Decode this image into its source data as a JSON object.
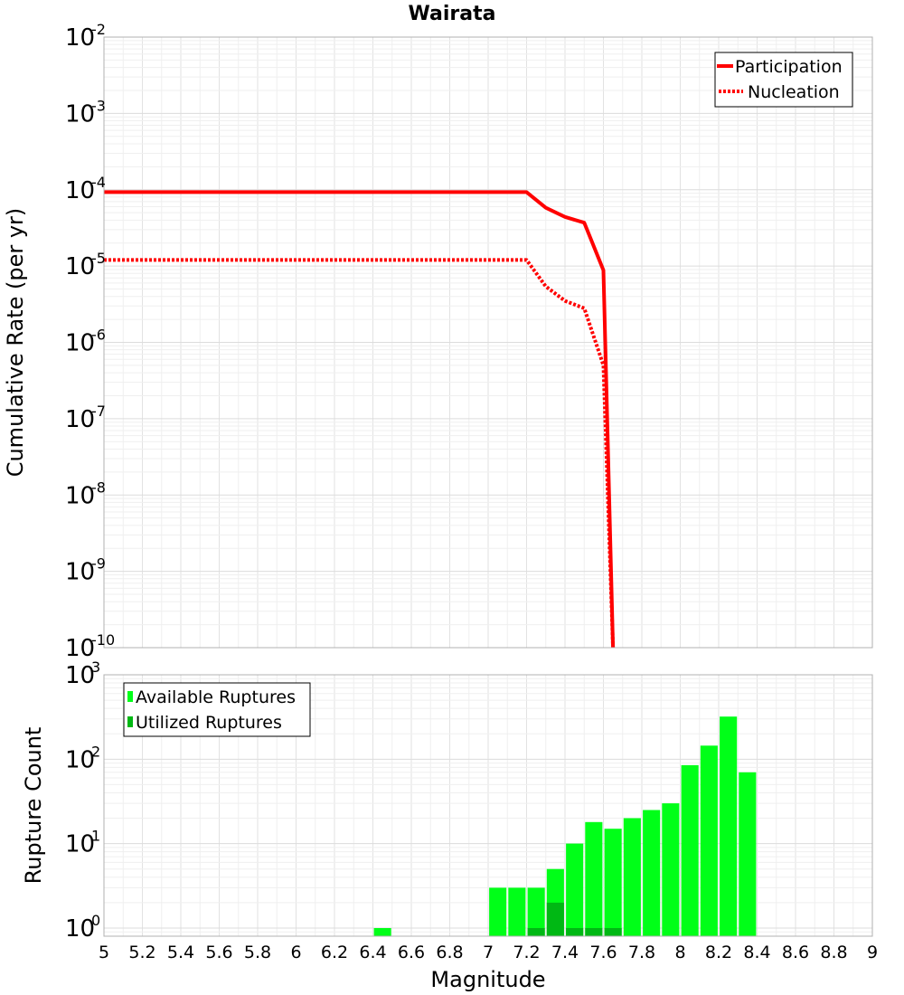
{
  "chart_data": [
    {
      "type": "line",
      "title": "Wairata",
      "xlabel": "",
      "ylabel": "Cumulative Rate (per yr)",
      "xlim": [
        5,
        9
      ],
      "ylim": [
        1e-10,
        0.01
      ],
      "yscale": "log",
      "grid": true,
      "legend_position": "top-right",
      "y_tick_labels": [
        {
          "base": "10",
          "exp": "-10"
        },
        {
          "base": "10",
          "exp": "-9"
        },
        {
          "base": "10",
          "exp": "-8"
        },
        {
          "base": "10",
          "exp": "-7"
        },
        {
          "base": "10",
          "exp": "-6"
        },
        {
          "base": "10",
          "exp": "-5"
        },
        {
          "base": "10",
          "exp": "-4"
        },
        {
          "base": "10",
          "exp": "-3"
        },
        {
          "base": "10",
          "exp": "-2"
        }
      ],
      "series": [
        {
          "name": "Participation",
          "style": "solid",
          "color": "#ff0000",
          "x": [
            5.0,
            7.2,
            7.3,
            7.4,
            7.5,
            7.6,
            7.65
          ],
          "y": [
            9.3e-05,
            9.3e-05,
            5.8e-05,
            4.4e-05,
            3.7e-05,
            8.8e-06,
            1e-10
          ]
        },
        {
          "name": "Nucleation",
          "style": "dotted",
          "color": "#ff0000",
          "x": [
            5.0,
            7.2,
            7.3,
            7.4,
            7.5,
            7.6,
            7.65
          ],
          "y": [
            1.2e-05,
            1.2e-05,
            5.4e-06,
            3.5e-06,
            2.8e-06,
            5e-07,
            1e-10
          ]
        }
      ]
    },
    {
      "type": "bar",
      "xlabel": "Magnitude",
      "ylabel": "Rupture Count",
      "xlim": [
        5,
        9
      ],
      "ylim": [
        0.8,
        1000
      ],
      "yscale": "log",
      "grid": true,
      "legend_position": "top-left",
      "bar_width": 0.09,
      "x_tick_labels": [
        "5",
        "5.2",
        "5.4",
        "5.6",
        "5.8",
        "6",
        "6.2",
        "6.4",
        "6.6",
        "6.8",
        "7",
        "7.2",
        "7.4",
        "7.6",
        "7.8",
        "8",
        "8.2",
        "8.4",
        "8.6",
        "8.8",
        "9"
      ],
      "y_tick_labels": [
        {
          "base": "10",
          "exp": "0"
        },
        {
          "base": "10",
          "exp": "1"
        },
        {
          "base": "10",
          "exp": "2"
        },
        {
          "base": "10",
          "exp": "3"
        }
      ],
      "series": [
        {
          "name": "Available Ruptures",
          "color": "#00ff18",
          "x": [
            6.45,
            7.05,
            7.15,
            7.25,
            7.35,
            7.45,
            7.55,
            7.65,
            7.75,
            7.85,
            7.95,
            8.05,
            8.15,
            8.25,
            8.35
          ],
          "values": [
            1,
            3,
            3,
            3,
            5,
            10,
            18,
            15,
            20,
            25,
            30,
            85,
            145,
            320,
            70
          ]
        },
        {
          "name": "Utilized Ruptures",
          "color": "#00b814",
          "x": [
            7.25,
            7.35,
            7.45,
            7.55,
            7.65
          ],
          "values": [
            1,
            2,
            1,
            1,
            1
          ]
        }
      ]
    }
  ]
}
